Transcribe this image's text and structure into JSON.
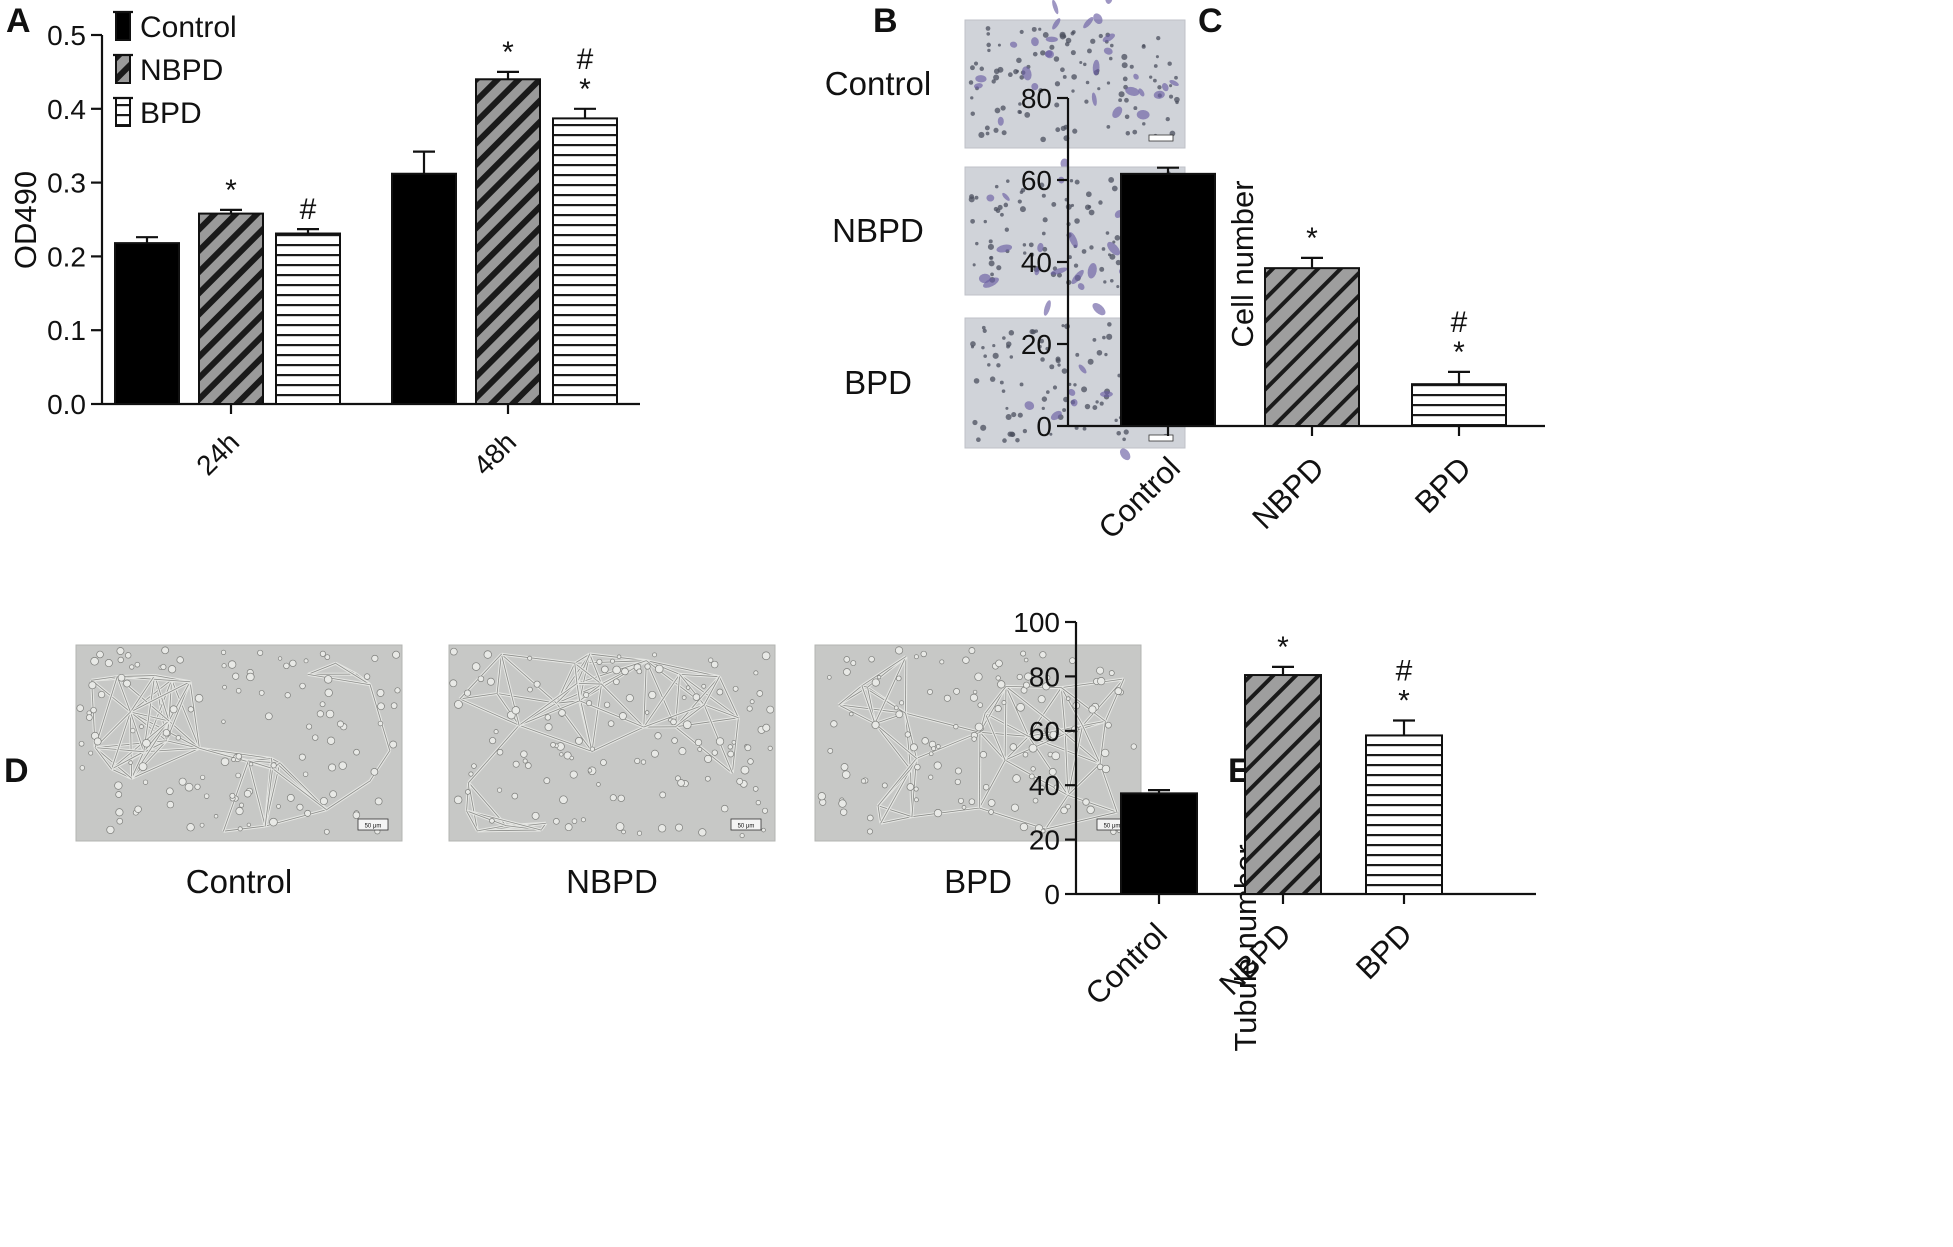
{
  "panel_labels": {
    "a": "A",
    "b": "B",
    "c": "C",
    "d": "D",
    "e": "E"
  },
  "colors": {
    "control": "#000000",
    "nbpd": "#9a9a9a",
    "bpd": "#ffffff",
    "axis": "#111111",
    "photo_b": "#d0d3d9",
    "photo_d": "#c7c8c6",
    "cell_stain": "#6a5ea3"
  },
  "image_labels": {
    "b": [
      "Control",
      "NBPD",
      "BPD"
    ],
    "d": [
      "Control",
      "NBPD",
      "BPD"
    ]
  },
  "scale_bar_text": "50 μm",
  "chart_data": [
    {
      "id": "A",
      "type": "bar",
      "categories": [
        "24h",
        "48h"
      ],
      "series": [
        {
          "name": "Control",
          "values": [
            0.218,
            0.312
          ],
          "errors": [
            0.008,
            0.03
          ],
          "marks": [
            "",
            ""
          ]
        },
        {
          "name": "NBPD",
          "values": [
            0.258,
            0.44
          ],
          "errors": [
            0.005,
            0.01
          ],
          "marks": [
            "*",
            "*"
          ]
        },
        {
          "name": "BPD",
          "values": [
            0.231,
            0.387
          ],
          "errors": [
            0.006,
            0.013
          ],
          "marks": [
            "#",
            "#\n*"
          ]
        }
      ],
      "xlabel": "",
      "ylabel": "OD490",
      "ylim": [
        0,
        0.5
      ],
      "yticks": [
        "0.0",
        "0.1",
        "0.2",
        "0.3",
        "0.4",
        "0.5"
      ],
      "legend_placement": "top-left",
      "grid": false
    },
    {
      "id": "C",
      "type": "bar",
      "categories": [
        "Control",
        "NBPD",
        "BPD"
      ],
      "values": [
        61.5,
        38.5,
        10.2
      ],
      "errors": [
        1.5,
        2.5,
        3.0
      ],
      "marks": [
        "",
        "*",
        "#\n*"
      ],
      "xlabel": "",
      "ylabel": "Cell number",
      "ylim": [
        0,
        80
      ],
      "yticks": [
        "0",
        "20",
        "40",
        "60",
        "80"
      ],
      "grid": false
    },
    {
      "id": "E",
      "type": "bar",
      "categories": [
        "Control",
        "NBPD",
        "BPD"
      ],
      "values": [
        37,
        80.5,
        58.3
      ],
      "errors": [
        1.2,
        3.0,
        5.5
      ],
      "marks": [
        "",
        "*",
        "#\n*"
      ],
      "xlabel": "",
      "ylabel": "Tubule number",
      "ylim": [
        0,
        100
      ],
      "yticks": [
        "0",
        "20",
        "40",
        "60",
        "80",
        "100"
      ],
      "grid": false
    }
  ]
}
